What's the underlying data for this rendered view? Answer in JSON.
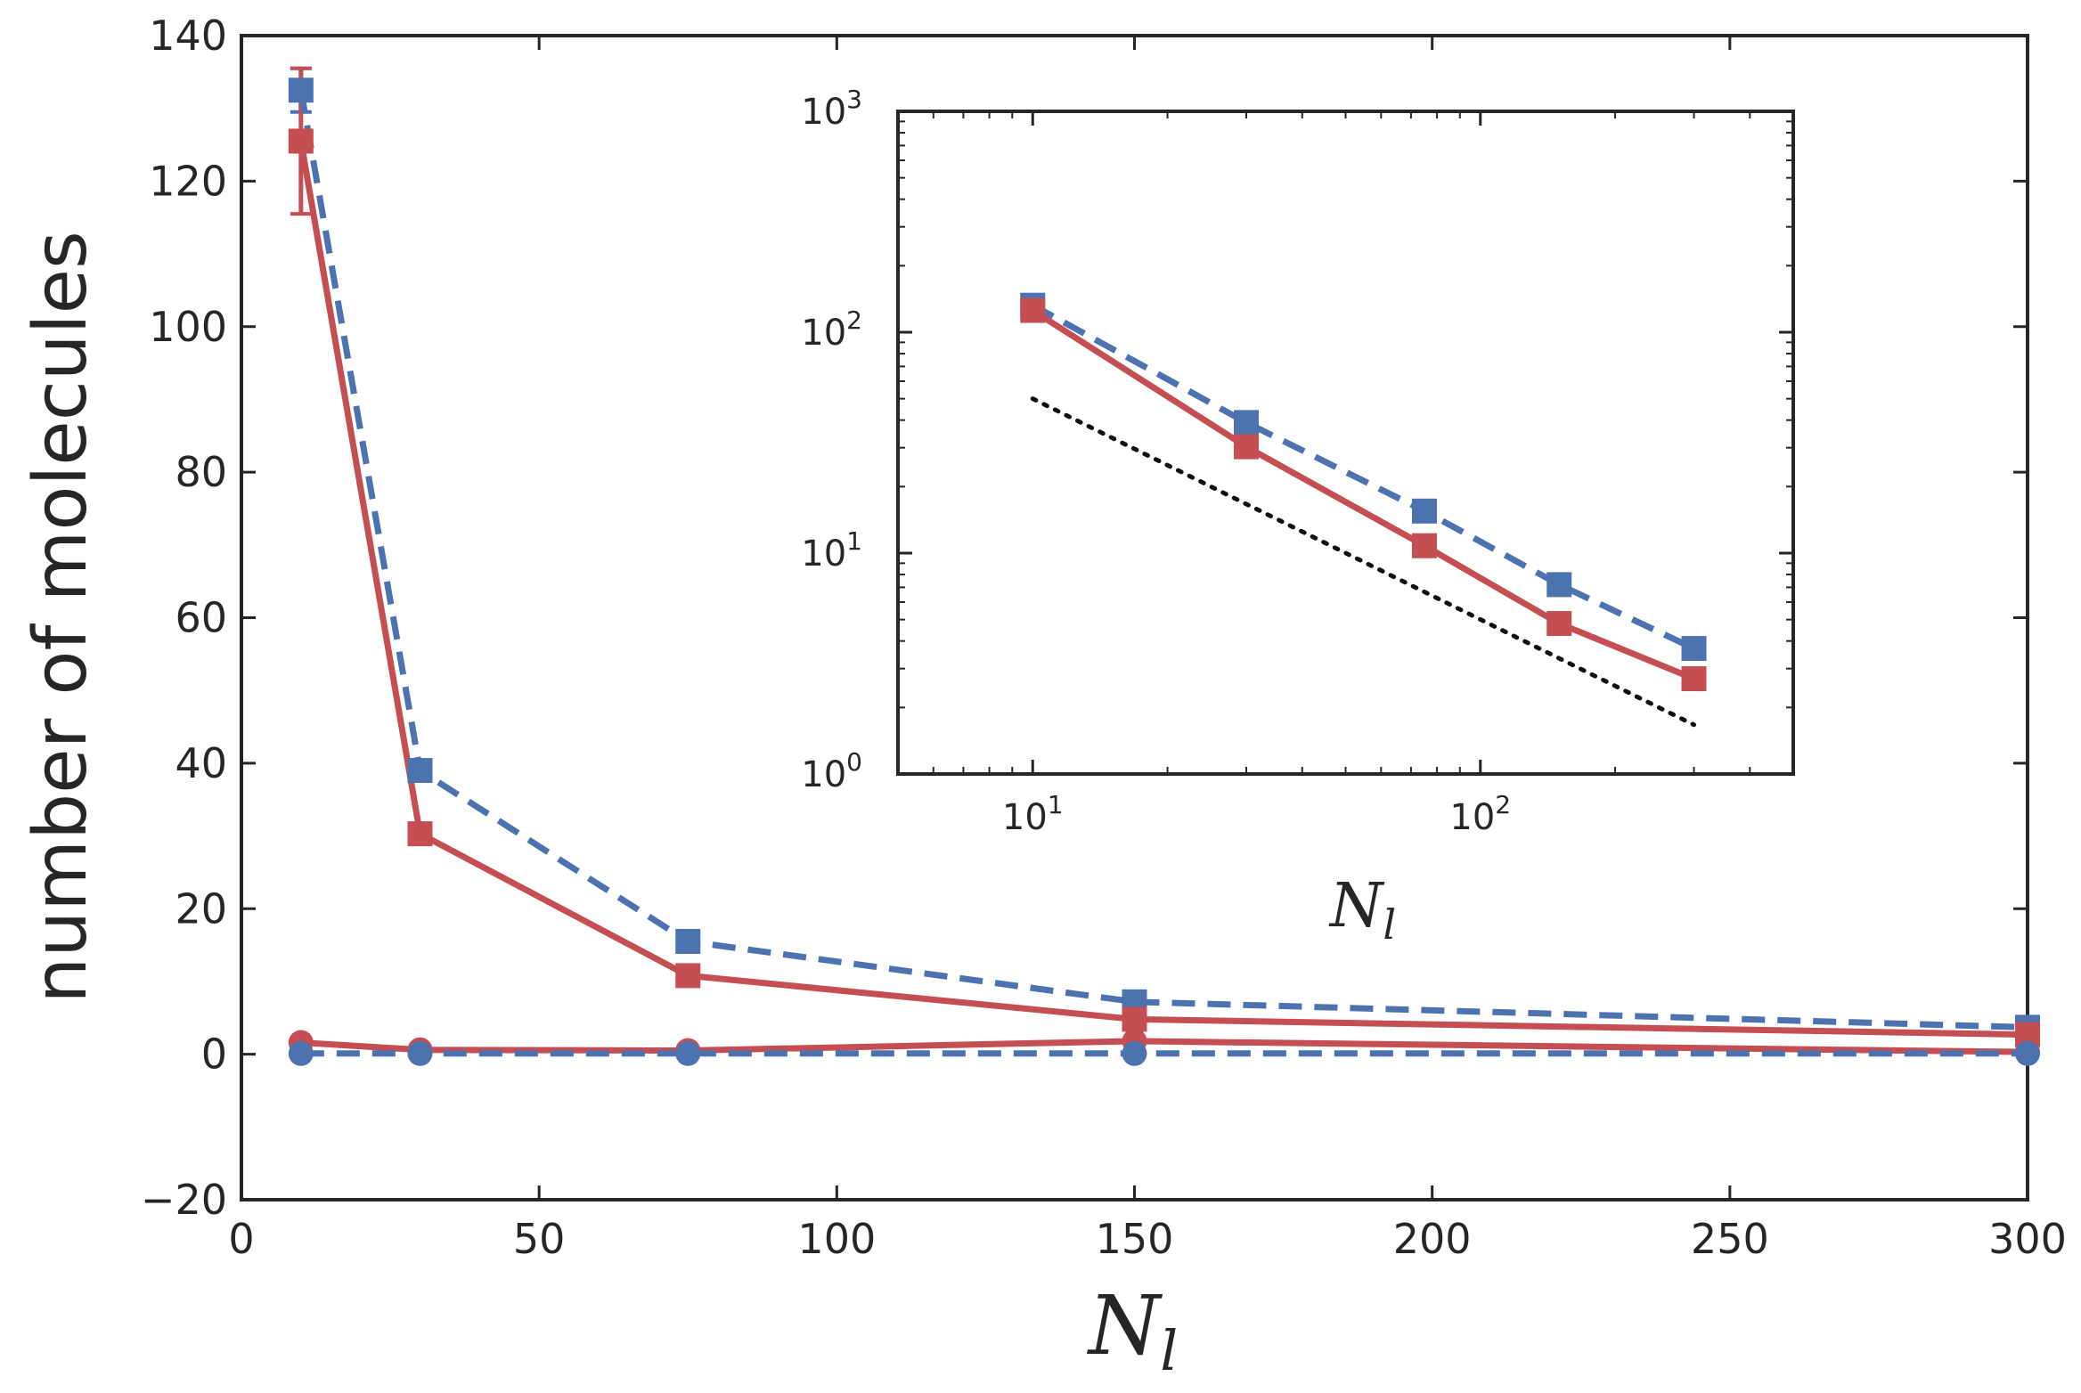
{
  "colors": {
    "blue": "#4c72b0",
    "red": "#c44e52",
    "frame": "#262626",
    "ref_line": "#111111"
  },
  "chart_data": [
    {
      "id": "main",
      "type": "line",
      "title": "",
      "xlabel": "N",
      "xlabel_sub": "l",
      "ylabel": "number of molecules",
      "xlim": [
        0,
        300
      ],
      "ylim": [
        -20,
        140
      ],
      "xticks": [
        0,
        50,
        100,
        150,
        200,
        250,
        300
      ],
      "yticks": [
        -20,
        0,
        20,
        40,
        60,
        80,
        100,
        120,
        140
      ],
      "xtick_labels": [
        "0",
        "50",
        "100",
        "150",
        "200",
        "250",
        "300"
      ],
      "ytick_labels": [
        "−20",
        "0",
        "20",
        "40",
        "60",
        "80",
        "100",
        "120",
        "140"
      ],
      "grid": false,
      "x": [
        10,
        30,
        75,
        150,
        300
      ],
      "series": [
        {
          "name": "blue squares (dashed)",
          "color": "blue",
          "marker": "square",
          "dash": true,
          "values": [
            132.5,
            39.0,
            15.5,
            7.2,
            3.7
          ],
          "err": [
            3,
            1,
            0.5,
            0.3,
            0.2
          ]
        },
        {
          "name": "red squares (solid)",
          "color": "red",
          "marker": "square",
          "dash": false,
          "values": [
            125.5,
            30.3,
            10.8,
            4.8,
            2.7
          ],
          "err": [
            10,
            1.2,
            0.5,
            0.3,
            0.2
          ]
        },
        {
          "name": "red circles (solid)",
          "color": "red",
          "marker": "circle",
          "dash": false,
          "values": [
            1.6,
            0.6,
            0.5,
            1.8,
            0.3
          ],
          "err": [
            0.3,
            0.2,
            0.2,
            0.3,
            0.1
          ]
        },
        {
          "name": "blue circles (dashed)",
          "color": "blue",
          "marker": "circle",
          "dash": true,
          "values": [
            0.1,
            0.1,
            0.1,
            0.1,
            0.1
          ],
          "err": [
            0,
            0,
            0,
            0,
            0
          ]
        }
      ]
    },
    {
      "id": "inset",
      "type": "line",
      "scale": "log-log",
      "xlabel": "N",
      "xlabel_sub": "l",
      "xlim": [
        5,
        500
      ],
      "ylim": [
        1,
        1000
      ],
      "xticks": [
        10,
        100
      ],
      "yticks": [
        1,
        10,
        100,
        1000
      ],
      "xtick_labels": [
        {
          "base": "10",
          "exp": "1"
        },
        {
          "base": "10",
          "exp": "2"
        }
      ],
      "ytick_labels": [
        {
          "base": "10",
          "exp": "0"
        },
        {
          "base": "10",
          "exp": "1"
        },
        {
          "base": "10",
          "exp": "2"
        },
        {
          "base": "10",
          "exp": "3"
        }
      ],
      "grid": false,
      "x": [
        10,
        30,
        75,
        150,
        300
      ],
      "series": [
        {
          "name": "blue squares (dashed)",
          "color": "blue",
          "marker": "square",
          "dash": true,
          "values": [
            132.5,
            39.0,
            15.5,
            7.2,
            3.7
          ]
        },
        {
          "name": "red squares (solid)",
          "color": "red",
          "marker": "square",
          "dash": false,
          "values": [
            125.5,
            30.3,
            10.8,
            4.8,
            2.7
          ]
        }
      ],
      "reference_line": {
        "name": "power-law guide (dotted)",
        "x": [
          10,
          300
        ],
        "values": [
          50,
          1.67
        ]
      }
    }
  ]
}
